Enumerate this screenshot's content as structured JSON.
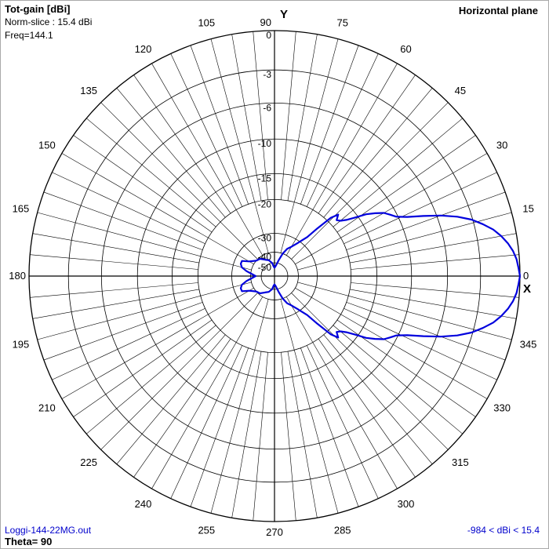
{
  "header": {
    "title": "Tot-gain [dBi]",
    "norm_slice": "Norm-slice : 15.4 dBi",
    "freq": "Freq=144.1",
    "plane": "Horizontal plane"
  },
  "footer": {
    "filename": "Loggi-144-22MG.out",
    "theta": "Theta= 90",
    "range": "-984 < dBi < 15.4"
  },
  "axes": {
    "y_label": "Y",
    "x_label": "X"
  },
  "colors": {
    "pattern": "#0000dd",
    "grid": "#000000",
    "background": "#ffffff",
    "footer_text": "#0000cc"
  },
  "chart_data": {
    "type": "polar",
    "title": "Tot-gain [dBi]",
    "plane": "Horizontal plane",
    "angle_unit": "degrees",
    "angle_ticks": [
      "0",
      "15",
      "30",
      "45",
      "60",
      "75",
      "90",
      "105",
      "120",
      "135",
      "150",
      "165",
      "180",
      "195",
      "210",
      "225",
      "240",
      "255",
      "270",
      "285",
      "300",
      "315",
      "330",
      "345"
    ],
    "radial_ticks": [
      "0",
      "-3",
      "-6",
      "-10",
      "-15",
      "-20",
      "-30",
      "-40",
      "-50"
    ],
    "radial_values_db": [
      0,
      -3,
      -6,
      -10,
      -15,
      -20,
      -30,
      -40,
      -50
    ],
    "radial_min_db": -60,
    "normalization_dbi": 15.4,
    "series": [
      {
        "angles": [
          0,
          2,
          4,
          6,
          8,
          10,
          12,
          14,
          16,
          18,
          20,
          22,
          24,
          26,
          28,
          30,
          32,
          34,
          36,
          38,
          40,
          42,
          44,
          46,
          48,
          50,
          55,
          60,
          65,
          70,
          75,
          80,
          85,
          90,
          95,
          100,
          110,
          120,
          130,
          140,
          150,
          155,
          160,
          165,
          170,
          175,
          180,
          185,
          190,
          195,
          200,
          205,
          210,
          220,
          230,
          240,
          250,
          260,
          265,
          270,
          275,
          280,
          285,
          290,
          295,
          300,
          305,
          310,
          312,
          314,
          316,
          318,
          320,
          322,
          324,
          326,
          328,
          330,
          332,
          334,
          336,
          338,
          340,
          342,
          344,
          346,
          348,
          350,
          352,
          354,
          356,
          358,
          360
        ],
        "values_db": [
          0,
          -0.1,
          -0.2,
          -0.4,
          -0.7,
          -1.1,
          -1.6,
          -2.3,
          -3.1,
          -4.2,
          -5.6,
          -7.3,
          -9.0,
          -10.2,
          -10.8,
          -11.4,
          -12.5,
          -13.7,
          -15.5,
          -17,
          -18,
          -18.5,
          -17.5,
          -19,
          -23,
          -27,
          -31,
          -34,
          -36,
          -40,
          -46,
          -52,
          -56,
          -58,
          -56,
          -50,
          -46,
          -44,
          -41,
          -40,
          -36.5,
          -33,
          -33,
          -34,
          -37,
          -41,
          -44,
          -41,
          -37,
          -34,
          -33,
          -33,
          -36.5,
          -40,
          -41,
          -44,
          -46,
          -50,
          -56,
          -58,
          -56,
          -52,
          -46,
          -40,
          -36,
          -34,
          -31,
          -27,
          -23,
          -19,
          -17.5,
          -18.5,
          -18,
          -17,
          -15.5,
          -13.7,
          -12.5,
          -11.4,
          -10.8,
          -10.2,
          -9.0,
          -7.3,
          -5.6,
          -4.2,
          -3.1,
          -2.3,
          -1.6,
          -1.1,
          -0.7,
          -0.4,
          -0.2,
          -0.1,
          0
        ]
      }
    ]
  }
}
